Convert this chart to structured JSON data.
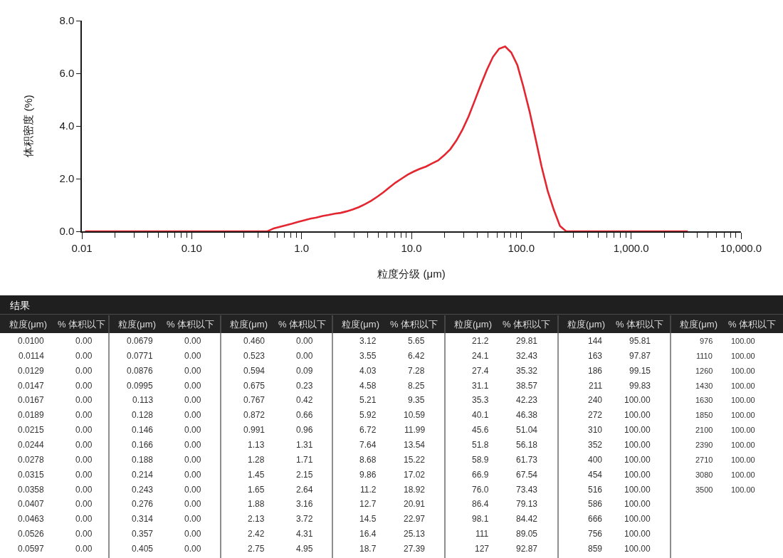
{
  "chart_data": [
    {
      "type": "line",
      "xlabel": "粒度分级 (μm)",
      "ylabel": "体积密度 (%)",
      "log": "x",
      "grid": false,
      "xlim": [
        0.01,
        10000
      ],
      "xticks": [
        0.01,
        {
          "value": 0.02,
          "label": null
        },
        {
          "value": 0.03,
          "label": null
        },
        {
          "value": 0.04,
          "label": null
        },
        {
          "value": 0.05,
          "label": null
        },
        {
          "value": 0.06,
          "label": null
        },
        {
          "value": 0.07,
          "label": null
        },
        {
          "value": 0.08,
          "label": null
        },
        {
          "value": 0.09,
          "label": null
        },
        {
          "value": 0.1,
          "label": "0.10"
        },
        {
          "value": 0.2,
          "label": null
        },
        {
          "value": 0.3,
          "label": null
        },
        {
          "value": 0.4,
          "label": null
        },
        {
          "value": 0.5,
          "label": null
        },
        {
          "value": 0.6,
          "label": null
        },
        {
          "value": 0.7,
          "label": null
        },
        {
          "value": 0.8,
          "label": null
        },
        {
          "value": 0.9,
          "label": null
        },
        {
          "value": 1,
          "label": "1.0"
        },
        {
          "value": 2,
          "label": null
        },
        {
          "value": 3,
          "label": null
        },
        {
          "value": 4,
          "label": null
        },
        {
          "value": 5,
          "label": null
        },
        {
          "value": 6,
          "label": null
        },
        {
          "value": 7,
          "label": null
        },
        {
          "value": 8,
          "label": null
        },
        {
          "value": 9,
          "label": null
        },
        {
          "value": 10,
          "label": "10.0"
        },
        {
          "value": 20,
          "label": null
        },
        {
          "value": 30,
          "label": null
        },
        {
          "value": 40,
          "label": null
        },
        {
          "value": 50,
          "label": null
        },
        {
          "value": 60,
          "label": null
        },
        {
          "value": 70,
          "label": null
        },
        {
          "value": 80,
          "label": null
        },
        {
          "value": 90,
          "label": null
        },
        {
          "value": 100,
          "label": "100.0"
        },
        {
          "value": 200,
          "label": null
        },
        {
          "value": 300,
          "label": null
        },
        {
          "value": 400,
          "label": null
        },
        {
          "value": 500,
          "label": null
        },
        {
          "value": 600,
          "label": null
        },
        {
          "value": 700,
          "label": null
        },
        {
          "value": 800,
          "label": null
        },
        {
          "value": 900,
          "label": null
        },
        {
          "value": 1000,
          "label": "1,000.0"
        },
        {
          "value": 2000,
          "label": null
        },
        {
          "value": 3000,
          "label": null
        },
        {
          "value": 4000,
          "label": null
        },
        {
          "value": 5000,
          "label": null
        },
        {
          "value": 6000,
          "label": null
        },
        {
          "value": 7000,
          "label": null
        },
        {
          "value": 8000,
          "label": null
        },
        {
          "value": 9000,
          "label": null
        },
        {
          "value": 10000,
          "label": "10,000.0"
        }
      ],
      "ylim": [
        0,
        8
      ],
      "yticks": [
        {
          "value": 0,
          "label": "0.0"
        },
        {
          "value": 2,
          "label": "2.0"
        },
        {
          "value": 4,
          "label": "4.0"
        },
        {
          "value": 6,
          "label": "6.0"
        },
        {
          "value": 8,
          "label": "8.0"
        }
      ],
      "color": "#e32630",
      "x": [
        0.0107,
        0.49,
        0.557,
        0.633,
        0.72,
        0.818,
        0.93,
        1.06,
        1.2,
        1.36,
        1.55,
        1.76,
        2.0,
        2.27,
        2.58,
        2.93,
        3.33,
        3.78,
        4.3,
        4.88,
        5.55,
        6.31,
        7.17,
        8.14,
        9.25,
        10.5,
        11.9,
        13.6,
        15.4,
        17.5,
        19.9,
        22.6,
        25.7,
        29.2,
        33.1,
        37.6,
        42.8,
        48.6,
        55.2,
        62.8,
        71.3,
        81.0,
        92.1,
        104,
        119,
        135,
        153,
        174,
        198,
        225,
        256,
        3280
      ],
      "values": [
        0,
        0,
        0.11,
        0.17,
        0.23,
        0.29,
        0.36,
        0.42,
        0.48,
        0.52,
        0.58,
        0.62,
        0.67,
        0.7,
        0.76,
        0.83,
        0.92,
        1.03,
        1.16,
        1.31,
        1.48,
        1.67,
        1.85,
        2.0,
        2.15,
        2.27,
        2.37,
        2.46,
        2.58,
        2.69,
        2.89,
        3.12,
        3.45,
        3.87,
        4.36,
        4.95,
        5.56,
        6.13,
        6.62,
        6.93,
        7.02,
        6.79,
        6.31,
        5.52,
        4.55,
        3.51,
        2.46,
        1.53,
        0.81,
        0.2,
        0,
        0
      ]
    },
    {
      "type": "heatmap",
      "title": "结果",
      "categories": [
        "粒度(μm)",
        "% 体积以下",
        "粒度(μm)",
        "% 体积以下",
        "粒度(μm)",
        "% 体积以下",
        "粒度(μm)",
        "% 体积以下",
        "粒度(μm)",
        "% 体积以下",
        "粒度(μm)",
        "% 体积以下",
        "粒度(μm)",
        "% 体积以下"
      ],
      "y_categories": [
        null,
        null,
        null,
        null,
        null,
        null,
        null,
        null,
        null,
        null,
        null,
        null,
        null,
        null,
        null
      ],
      "cells": [
        [
          0.01,
          0,
          0.0679,
          0,
          0.46,
          0,
          3.12,
          5.65,
          21.2,
          29.81,
          144,
          95.81,
          976,
          100
        ],
        [
          0.0114,
          0,
          0.0771,
          0,
          0.523,
          0,
          3.55,
          6.42,
          24.1,
          32.43,
          163,
          97.87,
          1110,
          100
        ],
        [
          0.0129,
          0,
          0.0876,
          0,
          0.594,
          0.09,
          4.03,
          7.28,
          27.4,
          35.32,
          186,
          99.15,
          1260,
          100
        ],
        [
          0.0147,
          0,
          0.0995,
          0,
          0.675,
          0.23,
          4.58,
          8.25,
          31.1,
          38.57,
          211,
          99.83,
          1430,
          100
        ],
        [
          0.0167,
          0,
          0.113,
          0,
          0.767,
          0.42,
          5.21,
          9.35,
          35.3,
          42.23,
          240,
          100,
          1630,
          100
        ],
        [
          0.0189,
          0,
          0.128,
          0,
          0.872,
          0.66,
          5.92,
          10.59,
          40.1,
          46.38,
          272,
          100,
          1850,
          100
        ],
        [
          0.0215,
          0,
          0.146,
          0,
          0.991,
          0.96,
          6.72,
          11.99,
          45.6,
          51.04,
          310,
          100,
          2100,
          100
        ],
        [
          0.0244,
          0,
          0.166,
          0,
          1.13,
          1.31,
          7.64,
          13.54,
          51.8,
          56.18,
          352,
          100,
          2390,
          100
        ],
        [
          0.0278,
          0,
          0.188,
          0,
          1.28,
          1.71,
          8.68,
          15.22,
          58.9,
          61.73,
          400,
          100,
          2710,
          100
        ],
        [
          0.0315,
          0,
          0.214,
          0,
          1.45,
          2.15,
          9.86,
          17.02,
          66.9,
          67.54,
          454,
          100,
          3080,
          100
        ],
        [
          0.0358,
          0,
          0.243,
          0,
          1.65,
          2.64,
          11.2,
          18.92,
          76.0,
          73.43,
          516,
          100,
          3500,
          100
        ],
        [
          0.0407,
          0,
          0.276,
          0,
          1.88,
          3.16,
          12.7,
          20.91,
          86.4,
          79.13,
          586,
          100,
          null,
          null
        ],
        [
          0.0463,
          0,
          0.314,
          0,
          2.13,
          3.72,
          14.5,
          22.97,
          98.1,
          84.42,
          666,
          100,
          null,
          null
        ],
        [
          0.0526,
          0,
          0.357,
          0,
          2.42,
          4.31,
          16.4,
          25.13,
          111,
          89.05,
          756,
          100,
          null,
          null
        ],
        [
          0.0597,
          0,
          0.405,
          0,
          2.75,
          4.95,
          18.7,
          27.39,
          127,
          92.87,
          859,
          100,
          null,
          null
        ]
      ],
      "cell_labels": [
        [
          "0.0100",
          "0.00",
          "0.0679",
          "0.00",
          "0.460",
          "0.00",
          "3.12",
          "5.65",
          "21.2",
          "29.81",
          "144",
          "95.81",
          "976",
          "100.00"
        ],
        [
          "0.0114",
          "0.00",
          "0.0771",
          "0.00",
          "0.523",
          "0.00",
          "3.55",
          "6.42",
          "24.1",
          "32.43",
          "163",
          "97.87",
          "1110",
          "100.00"
        ],
        [
          "0.0129",
          "0.00",
          "0.0876",
          "0.00",
          "0.594",
          "0.09",
          "4.03",
          "7.28",
          "27.4",
          "35.32",
          "186",
          "99.15",
          "1260",
          "100.00"
        ],
        [
          "0.0147",
          "0.00",
          "0.0995",
          "0.00",
          "0.675",
          "0.23",
          "4.58",
          "8.25",
          "31.1",
          "38.57",
          "211",
          "99.83",
          "1430",
          "100.00"
        ],
        [
          "0.0167",
          "0.00",
          "0.113",
          "0.00",
          "0.767",
          "0.42",
          "5.21",
          "9.35",
          "35.3",
          "42.23",
          "240",
          "100.00",
          "1630",
          "100.00"
        ],
        [
          "0.0189",
          "0.00",
          "0.128",
          "0.00",
          "0.872",
          "0.66",
          "5.92",
          "10.59",
          "40.1",
          "46.38",
          "272",
          "100.00",
          "1850",
          "100.00"
        ],
        [
          "0.0215",
          "0.00",
          "0.146",
          "0.00",
          "0.991",
          "0.96",
          "6.72",
          "11.99",
          "45.6",
          "51.04",
          "310",
          "100.00",
          "2100",
          "100.00"
        ],
        [
          "0.0244",
          "0.00",
          "0.166",
          "0.00",
          "1.13",
          "1.31",
          "7.64",
          "13.54",
          "51.8",
          "56.18",
          "352",
          "100.00",
          "2390",
          "100.00"
        ],
        [
          "0.0278",
          "0.00",
          "0.188",
          "0.00",
          "1.28",
          "1.71",
          "8.68",
          "15.22",
          "58.9",
          "61.73",
          "400",
          "100.00",
          "2710",
          "100.00"
        ],
        [
          "0.0315",
          "0.00",
          "0.214",
          "0.00",
          "1.45",
          "2.15",
          "9.86",
          "17.02",
          "66.9",
          "67.54",
          "454",
          "100.00",
          "3080",
          "100.00"
        ],
        [
          "0.0358",
          "0.00",
          "0.243",
          "0.00",
          "1.65",
          "2.64",
          "11.2",
          "18.92",
          "76.0",
          "73.43",
          "516",
          "100.00",
          "3500",
          "100.00"
        ],
        [
          "0.0407",
          "0.00",
          "0.276",
          "0.00",
          "1.88",
          "3.16",
          "12.7",
          "20.91",
          "86.4",
          "79.13",
          "586",
          "100.00",
          null,
          null
        ],
        [
          "0.0463",
          "0.00",
          "0.314",
          "0.00",
          "2.13",
          "3.72",
          "14.5",
          "22.97",
          "98.1",
          "84.42",
          "666",
          "100.00",
          null,
          null
        ],
        [
          "0.0526",
          "0.00",
          "0.357",
          "0.00",
          "2.42",
          "4.31",
          "16.4",
          "25.13",
          "111",
          "89.05",
          "756",
          "100.00",
          null,
          null
        ],
        [
          "0.0597",
          "0.00",
          "0.405",
          "0.00",
          "2.75",
          "4.95",
          "18.7",
          "27.39",
          "127",
          "92.87",
          "859",
          "100.00",
          null,
          null
        ]
      ]
    }
  ]
}
